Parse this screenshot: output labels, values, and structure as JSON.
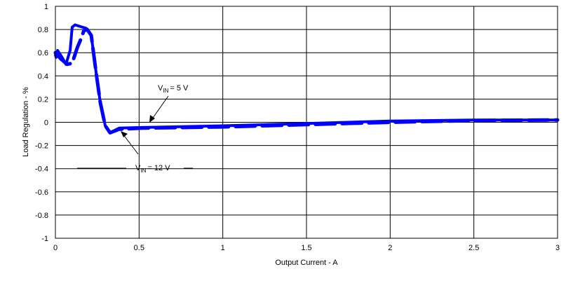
{
  "chart_data": {
    "type": "line",
    "xlabel": "Output Current - A",
    "ylabel": "Load Regulation  - %",
    "xlim": [
      0,
      3
    ],
    "ylim": [
      -1,
      1
    ],
    "xticks": [
      "0",
      "0.5",
      "1",
      "1.5",
      "2",
      "2.5",
      "3"
    ],
    "yticks": [
      "1",
      "0.8",
      "0.6",
      "0.4",
      "0.2",
      "0",
      "-0.2",
      "-0.4",
      "-0.6",
      "-0.8",
      "-1"
    ],
    "grid": true,
    "color": "#0000ff",
    "series": [
      {
        "name": "VIN = 5 V",
        "style": "solid",
        "x": [
          0,
          0.004,
          0.013,
          0.04,
          0.063,
          0.088,
          0.1,
          0.117,
          0.184,
          0.214,
          0.243,
          0.268,
          0.298,
          0.327,
          0.381,
          0.52,
          1,
          1.5,
          2,
          2.5,
          3
        ],
        "y": [
          0.58,
          0.56,
          0.62,
          0.56,
          0.5,
          0.62,
          0.82,
          0.84,
          0.81,
          0.75,
          0.43,
          0.17,
          -0.03,
          -0.09,
          -0.05,
          -0.045,
          -0.03,
          -0.01,
          0.01,
          0.02,
          0.02
        ]
      },
      {
        "name": "VIN = 12 V",
        "style": "dashed",
        "x": [
          0,
          0.03,
          0.07,
          0.1,
          0.13,
          0.15,
          0.17,
          0.19,
          0.214,
          0.243,
          0.268,
          0.298,
          0.327,
          0.381,
          0.52,
          1,
          1.5,
          2,
          2.5,
          3
        ],
        "y": [
          0.6,
          0.55,
          0.5,
          0.51,
          0.64,
          0.71,
          0.79,
          0.8,
          0.75,
          0.43,
          0.17,
          -0.03,
          -0.09,
          -0.06,
          -0.05,
          -0.04,
          -0.02,
          0.0,
          0.015,
          0.02
        ]
      }
    ],
    "annotations": [
      {
        "prefix": "V",
        "sub": "IN",
        "text": "= 5 V"
      },
      {
        "prefix": "V",
        "sub": "IN",
        "text": "= 12 V"
      }
    ]
  }
}
